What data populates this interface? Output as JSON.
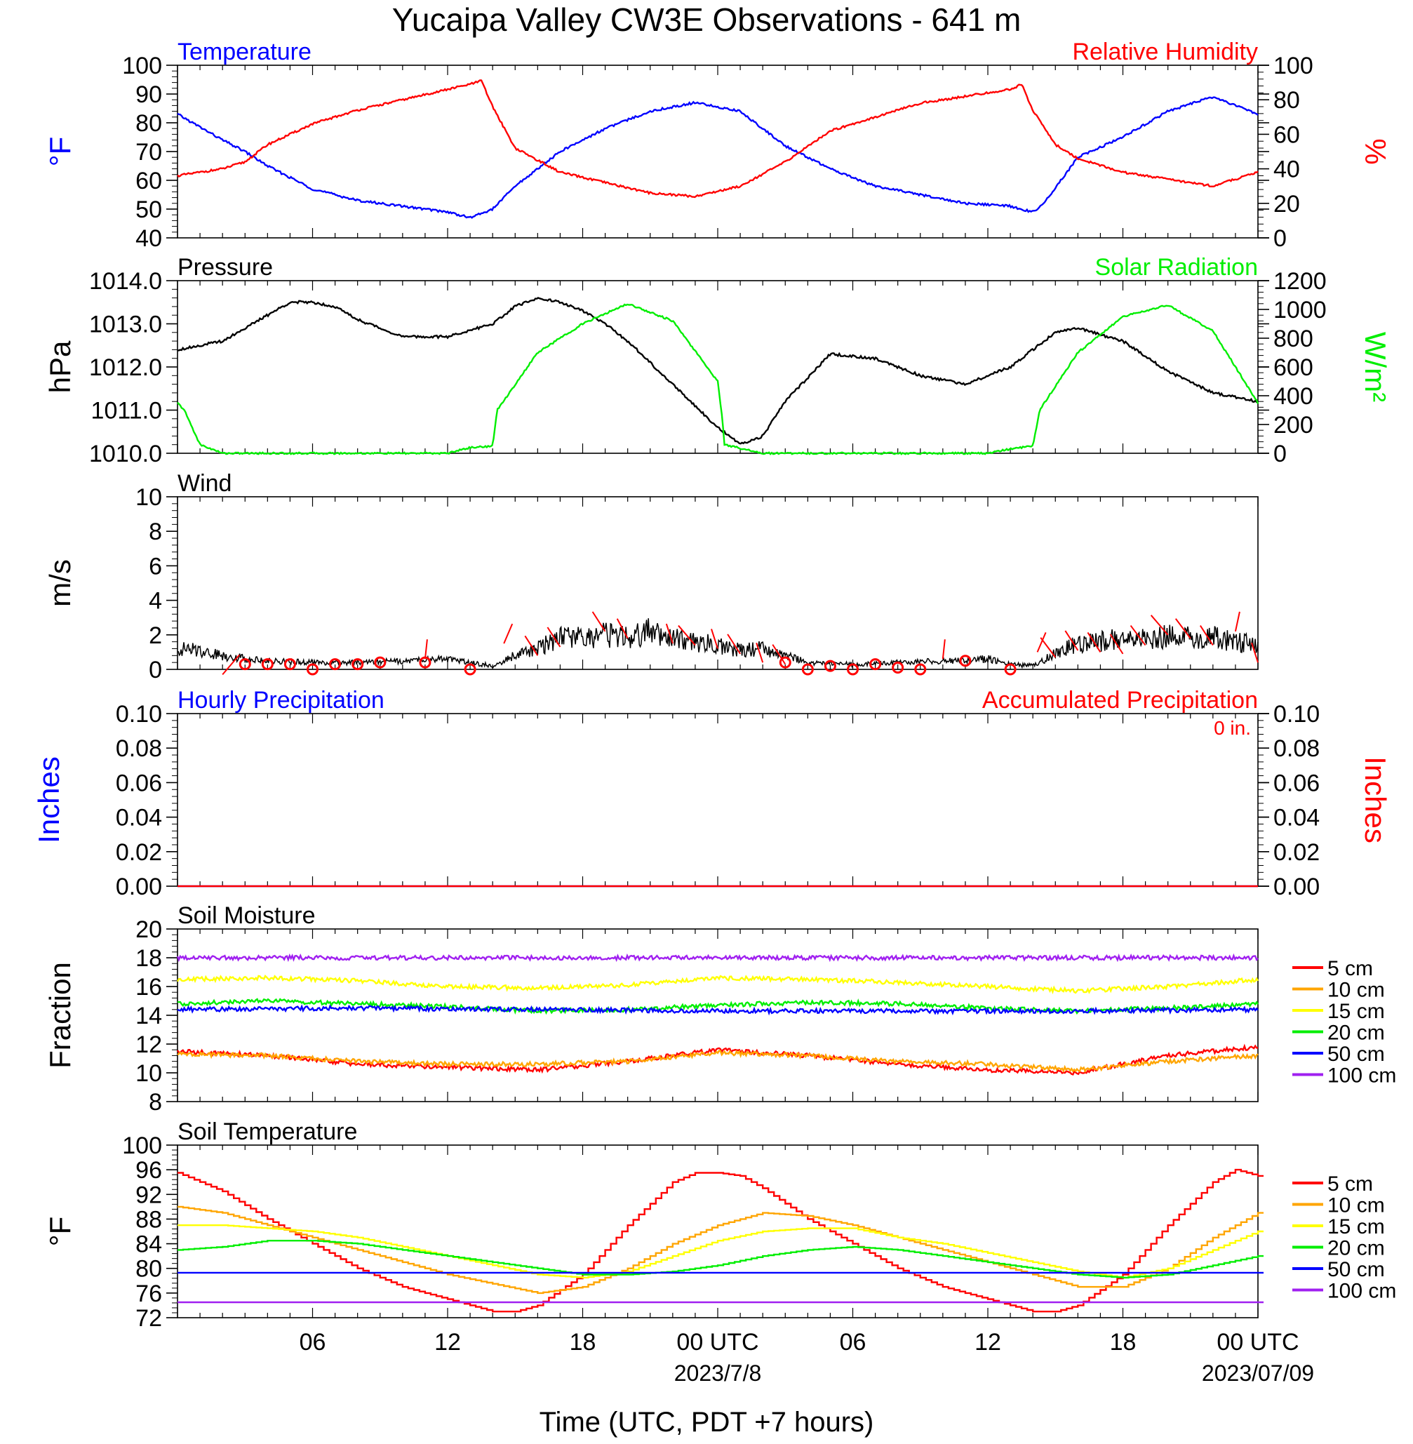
{
  "title": "Yucaipa Valley CW3E Observations - 641 m",
  "xlabel": "Time (UTC, PDT +7 hours)",
  "x_ticks": [
    {
      "h": 6,
      "label": "06",
      "date": ""
    },
    {
      "h": 12,
      "label": "12",
      "date": ""
    },
    {
      "h": 18,
      "label": "18",
      "date": ""
    },
    {
      "h": 24,
      "label": "00 UTC",
      "date": "2023/7/8"
    },
    {
      "h": 30,
      "label": "06",
      "date": ""
    },
    {
      "h": 36,
      "label": "12",
      "date": ""
    },
    {
      "h": 42,
      "label": "18",
      "date": ""
    },
    {
      "h": 48,
      "label": "00 UTC",
      "date": "2023/07/09"
    }
  ],
  "panels": {
    "temp_rh": {
      "title_left": "Temperature",
      "title_right": "Relative Humidity",
      "ylabel_left": "°F",
      "ylabel_right": "%",
      "left_ticks": [
        "40",
        "50",
        "60",
        "70",
        "80",
        "90",
        "100"
      ],
      "right_ticks": [
        "0",
        "20",
        "40",
        "60",
        "80",
        "100"
      ]
    },
    "pressure": {
      "title_left": "Pressure",
      "title_right": "Solar Radiation",
      "ylabel_left": "hPa",
      "ylabel_right": "W/m²",
      "left_ticks": [
        "1010.0",
        "1011.0",
        "1012.0",
        "1013.0",
        "1014.0"
      ],
      "right_ticks": [
        "0",
        "200",
        "400",
        "600",
        "800",
        "1000",
        "1200"
      ]
    },
    "wind": {
      "title_left": "Wind",
      "ylabel_left": "m/s",
      "left_ticks": [
        "0",
        "2",
        "4",
        "6",
        "8",
        "10"
      ]
    },
    "precip": {
      "title_left": "Hourly Precipitation",
      "title_right": "Accumulated Precipitation",
      "total_label": "0 in.",
      "ylabel_left": "Inches",
      "ylabel_right": "Inches",
      "left_ticks": [
        "0.00",
        "0.02",
        "0.04",
        "0.06",
        "0.08",
        "0.10"
      ],
      "right_ticks": [
        "0.00",
        "0.02",
        "0.04",
        "0.06",
        "0.08",
        "0.10"
      ]
    },
    "soil_moisture": {
      "title_left": "Soil Moisture",
      "ylabel_left": "Fraction",
      "left_ticks": [
        "8",
        "10",
        "12",
        "14",
        "16",
        "18",
        "20"
      ]
    },
    "soil_temp": {
      "title_left": "Soil Temperature",
      "ylabel_left": "°F",
      "left_ticks": [
        "72",
        "76",
        "80",
        "84",
        "88",
        "92",
        "96",
        "100"
      ]
    }
  },
  "legend": [
    {
      "label": "5 cm",
      "color": "#ff0000"
    },
    {
      "label": "10 cm",
      "color": "#ffa500"
    },
    {
      "label": "15 cm",
      "color": "#ffff00"
    },
    {
      "label": "20 cm",
      "color": "#00ee00"
    },
    {
      "label": "50 cm",
      "color": "#0000ff"
    },
    {
      "label": "100 cm",
      "color": "#a020f0"
    }
  ],
  "chart_data": [
    {
      "type": "line",
      "panel": "temp_rh",
      "x_units": "hours from 2023-07-07 00 UTC",
      "series": [
        {
          "name": "Temperature",
          "axis": "left",
          "color": "#0000ff",
          "x": [
            0,
            2,
            3,
            4,
            6,
            8,
            10,
            12,
            13,
            14,
            15,
            17,
            19,
            21,
            23,
            25,
            27,
            29,
            31,
            33,
            35,
            37,
            38,
            38.5,
            40,
            42,
            44,
            46,
            47,
            48
          ],
          "y": [
            83,
            74,
            70,
            65,
            57,
            53,
            51,
            49,
            47,
            50,
            58,
            70,
            78,
            84,
            87,
            84,
            72,
            64,
            58,
            55,
            52,
            51,
            49,
            52,
            68,
            75,
            84,
            89,
            86,
            83
          ]
        },
        {
          "name": "Relative Humidity",
          "axis": "right",
          "color": "#ff0000",
          "x": [
            0,
            2,
            3,
            4,
            6,
            8,
            10,
            12,
            13,
            13.5,
            14,
            15,
            17,
            19,
            21,
            23,
            25,
            27,
            29,
            31,
            33,
            35,
            37,
            37.5,
            38,
            39,
            40,
            42,
            44,
            46,
            47,
            48
          ],
          "y": [
            36,
            40,
            44,
            54,
            66,
            74,
            80,
            86,
            89,
            91,
            76,
            52,
            38,
            32,
            26,
            24,
            30,
            44,
            62,
            70,
            78,
            82,
            86,
            89,
            74,
            54,
            46,
            38,
            34,
            30,
            34,
            38
          ]
        }
      ],
      "ylim_left": [
        40,
        100
      ],
      "ylim_right": [
        0,
        100
      ]
    },
    {
      "type": "line",
      "panel": "pressure",
      "series": [
        {
          "name": "Pressure",
          "axis": "left",
          "color": "#000000",
          "x": [
            0,
            2,
            4,
            5,
            6,
            7,
            8,
            10,
            12,
            14,
            15,
            16,
            17,
            18,
            19,
            20,
            22,
            24,
            25,
            26,
            27,
            29,
            31,
            33,
            35,
            37,
            38,
            39,
            40,
            42,
            44,
            46,
            48
          ],
          "y": [
            1012.4,
            1012.6,
            1013.2,
            1013.5,
            1013.5,
            1013.4,
            1013.1,
            1012.7,
            1012.7,
            1013.0,
            1013.4,
            1013.6,
            1013.5,
            1013.3,
            1013.0,
            1012.6,
            1011.6,
            1010.6,
            1010.2,
            1010.4,
            1011.2,
            1012.3,
            1012.2,
            1011.8,
            1011.6,
            1012.0,
            1012.4,
            1012.8,
            1012.9,
            1012.6,
            1011.9,
            1011.4,
            1011.2
          ]
        },
        {
          "name": "Solar Radiation",
          "axis": "right",
          "color": "#00ee00",
          "x": [
            0,
            0.3,
            1,
            2,
            3,
            4,
            6,
            8,
            10,
            12,
            13,
            14,
            14.2,
            16,
            18,
            20,
            22,
            24,
            24.2,
            24.3,
            26,
            28,
            30,
            32,
            34,
            36,
            37,
            38,
            38.3,
            40,
            42,
            44,
            46,
            48
          ],
          "y": [
            350,
            300,
            60,
            0,
            0,
            0,
            0,
            0,
            0,
            0,
            40,
            50,
            300,
            700,
            900,
            1040,
            920,
            500,
            250,
            60,
            0,
            0,
            0,
            0,
            0,
            0,
            30,
            50,
            300,
            700,
            950,
            1030,
            850,
            350
          ]
        }
      ],
      "ylim_left": [
        1010,
        1014
      ],
      "ylim_right": [
        0,
        1200
      ]
    },
    {
      "type": "line",
      "panel": "wind",
      "series": [
        {
          "name": "Wind speed",
          "axis": "left",
          "color": "#000000",
          "x": [
            0,
            1,
            2,
            4,
            6,
            8,
            10,
            12,
            13,
            14,
            15,
            16,
            17,
            18,
            19,
            20,
            21,
            22,
            23,
            24,
            25,
            26,
            27,
            28,
            30,
            32,
            34,
            36,
            37,
            38,
            39,
            40,
            41,
            42,
            43,
            44,
            45,
            46,
            47,
            48
          ],
          "y": [
            1.2,
            1.1,
            0.8,
            0.5,
            0.4,
            0.4,
            0.5,
            0.6,
            0.4,
            0.2,
            0.8,
            1.2,
            1.9,
            1.8,
            2.0,
            1.8,
            2.2,
            1.8,
            1.6,
            1.4,
            1.1,
            1.2,
            0.8,
            0.4,
            0.3,
            0.4,
            0.5,
            0.6,
            0.3,
            0.2,
            0.9,
            1.5,
            1.6,
            1.8,
            1.8,
            1.9,
            1.8,
            1.9,
            1.6,
            1.4
          ]
        },
        {
          "name": "calm",
          "axis": "left",
          "color": "#ff0000",
          "x": [
            3,
            4,
            5,
            6,
            7,
            8,
            9,
            11,
            13,
            27,
            28,
            29,
            30,
            31,
            32,
            33,
            35,
            37
          ],
          "y": [
            0.3,
            0.3,
            0.3,
            0.0,
            0.3,
            0.3,
            0.4,
            0.4,
            0.0,
            0.4,
            0.0,
            0.2,
            0.0,
            0.3,
            0.1,
            0.0,
            0.5,
            0.0
          ]
        }
      ],
      "ylim_left": [
        0,
        10
      ]
    },
    {
      "type": "line",
      "panel": "precip",
      "series": [
        {
          "name": "Hourly Precipitation",
          "axis": "left",
          "color": "#0000ff",
          "x": [
            0,
            48
          ],
          "y": [
            0,
            0
          ]
        },
        {
          "name": "Accumulated Precipitation",
          "axis": "right",
          "color": "#ff0000",
          "x": [
            0,
            48
          ],
          "y": [
            0,
            0
          ]
        }
      ],
      "ylim_left": [
        0,
        0.1
      ],
      "ylim_right": [
        0,
        0.1
      ]
    },
    {
      "type": "line",
      "panel": "soil_moisture",
      "series": [
        {
          "name": "5 cm",
          "axis": "left",
          "color": "#ff0000",
          "x": [
            0,
            4,
            8,
            12,
            16,
            20,
            24,
            28,
            32,
            36,
            40,
            44,
            48
          ],
          "y": [
            11.5,
            11.2,
            10.6,
            10.4,
            10.2,
            10.8,
            11.6,
            11.2,
            10.6,
            10.2,
            10.0,
            11.2,
            11.8
          ]
        },
        {
          "name": "10 cm",
          "axis": "left",
          "color": "#ffa500",
          "x": [
            0,
            4,
            8,
            12,
            16,
            20,
            24,
            28,
            32,
            36,
            40,
            44,
            48
          ],
          "y": [
            11.3,
            11.2,
            10.8,
            10.6,
            10.6,
            10.8,
            11.4,
            11.2,
            10.8,
            10.6,
            10.2,
            10.8,
            11.2
          ]
        },
        {
          "name": "15 cm",
          "axis": "left",
          "color": "#ffff00",
          "x": [
            0,
            4,
            8,
            12,
            16,
            20,
            24,
            28,
            32,
            36,
            40,
            44,
            48
          ],
          "y": [
            16.5,
            16.6,
            16.4,
            16.0,
            15.9,
            16.1,
            16.6,
            16.5,
            16.3,
            16.0,
            15.7,
            16.0,
            16.5
          ]
        },
        {
          "name": "20 cm",
          "axis": "left",
          "color": "#00ee00",
          "x": [
            0,
            4,
            8,
            12,
            16,
            20,
            24,
            28,
            32,
            36,
            40,
            44,
            48
          ],
          "y": [
            14.8,
            15.0,
            14.8,
            14.6,
            14.3,
            14.4,
            14.7,
            14.9,
            14.8,
            14.5,
            14.3,
            14.5,
            14.8
          ]
        },
        {
          "name": "50 cm",
          "axis": "left",
          "color": "#0000ff",
          "x": [
            0,
            8,
            16,
            24,
            32,
            40,
            48
          ],
          "y": [
            14.4,
            14.5,
            14.4,
            14.3,
            14.3,
            14.3,
            14.4
          ]
        },
        {
          "name": "100 cm",
          "axis": "left",
          "color": "#a020f0",
          "x": [
            0,
            48
          ],
          "y": [
            18.0,
            18.0
          ]
        }
      ],
      "ylim_left": [
        8,
        20
      ]
    },
    {
      "type": "line",
      "panel": "soil_temp",
      "series": [
        {
          "name": "5 cm",
          "axis": "left",
          "color": "#ff0000",
          "x": [
            0,
            2,
            4,
            6,
            8,
            10,
            12,
            14,
            15,
            16,
            18,
            20,
            22,
            23,
            24,
            25,
            26,
            28,
            30,
            32,
            34,
            36,
            38,
            39,
            40,
            42,
            44,
            46,
            47,
            48
          ],
          "y": [
            95.5,
            92.5,
            88,
            84,
            80,
            77,
            75,
            73,
            73,
            74,
            79,
            87,
            94,
            95.5,
            95.5,
            95,
            93,
            88,
            84,
            80,
            77,
            75,
            73,
            73,
            74,
            79,
            87,
            94,
            96,
            95
          ]
        },
        {
          "name": "10 cm",
          "axis": "left",
          "color": "#ffa500",
          "x": [
            0,
            2,
            4,
            6,
            8,
            10,
            12,
            14,
            16,
            18,
            20,
            22,
            24,
            26,
            28,
            30,
            32,
            34,
            36,
            38,
            40,
            42,
            44,
            46,
            48
          ],
          "y": [
            90,
            89,
            87,
            85,
            83,
            81,
            79,
            77.5,
            76,
            77,
            80,
            84,
            87,
            89,
            88.5,
            87,
            85,
            83,
            81,
            79,
            77,
            77,
            80,
            85,
            89
          ]
        },
        {
          "name": "15 cm",
          "axis": "left",
          "color": "#ffff00",
          "x": [
            0,
            2,
            4,
            6,
            8,
            10,
            12,
            14,
            16,
            18,
            20,
            22,
            24,
            26,
            28,
            30,
            32,
            34,
            36,
            38,
            40,
            42,
            44,
            46,
            48
          ],
          "y": [
            87,
            87,
            86.5,
            86,
            85,
            83.5,
            82,
            80.5,
            79,
            78.5,
            79.5,
            82,
            84.5,
            86,
            86.5,
            86.5,
            85,
            84,
            82.5,
            81,
            79.5,
            78.5,
            80,
            83,
            86
          ]
        },
        {
          "name": "20 cm",
          "axis": "left",
          "color": "#00ee00",
          "x": [
            0,
            2,
            4,
            6,
            8,
            10,
            12,
            14,
            16,
            18,
            20,
            22,
            24,
            26,
            28,
            30,
            32,
            34,
            36,
            38,
            40,
            42,
            44,
            46,
            48
          ],
          "y": [
            83,
            83.5,
            84.5,
            84.5,
            84,
            83,
            82,
            81,
            80,
            79,
            79,
            79.5,
            80.5,
            82,
            83,
            83.5,
            83,
            82,
            81,
            80,
            79,
            78.5,
            79,
            80.5,
            82
          ]
        },
        {
          "name": "50 cm",
          "axis": "left",
          "color": "#0000ff",
          "x": [
            0,
            48
          ],
          "y": [
            79.3,
            79.3
          ]
        },
        {
          "name": "100 cm",
          "axis": "left",
          "color": "#a020f0",
          "x": [
            0,
            48
          ],
          "y": [
            74.5,
            74.5
          ]
        }
      ],
      "ylim_left": [
        72,
        100
      ]
    }
  ]
}
